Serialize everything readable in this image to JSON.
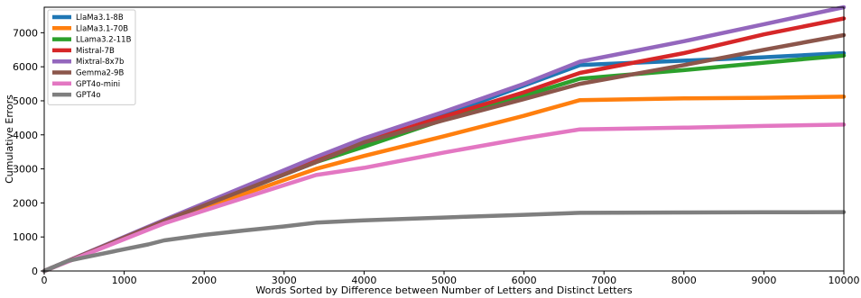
{
  "chart_data": {
    "type": "line",
    "xlabel": "Words Sorted by Difference between Number of Letters and Distinct Letters",
    "ylabel": "Cumulative Errors",
    "xlim": [
      0,
      10000
    ],
    "ylim": [
      0,
      7750
    ],
    "xticks": [
      0,
      1000,
      2000,
      3000,
      4000,
      5000,
      6000,
      7000,
      8000,
      9000,
      10000
    ],
    "yticks": [
      0,
      1000,
      2000,
      3000,
      4000,
      5000,
      6000,
      7000
    ],
    "grid": false,
    "legend_position": "top-left",
    "series": [
      {
        "name": "LlaMa3.1-8B",
        "color": "#1f77b4",
        "x": [
          0,
          1500,
          3400,
          5000,
          6000,
          6700,
          8000,
          9000,
          10000
        ],
        "y": [
          0,
          1450,
          3200,
          4580,
          5450,
          6050,
          6180,
          6280,
          6400
        ]
      },
      {
        "name": "LlaMa3.1-70B",
        "color": "#ff7f0e",
        "x": [
          0,
          1500,
          3400,
          4000,
          5000,
          6000,
          6700,
          8000,
          9000,
          10000
        ],
        "y": [
          0,
          1450,
          3000,
          3380,
          3960,
          4560,
          5020,
          5070,
          5090,
          5120
        ]
      },
      {
        "name": "LLama3.2-11B",
        "color": "#2ca02c",
        "x": [
          0,
          1500,
          3400,
          4000,
          5000,
          6000,
          6700,
          8000,
          9000,
          10000
        ],
        "y": [
          0,
          1480,
          3200,
          3650,
          4450,
          5150,
          5650,
          5900,
          6120,
          6330
        ]
      },
      {
        "name": "Mistral-7B",
        "color": "#d62728",
        "x": [
          0,
          1500,
          3400,
          4000,
          5000,
          6000,
          6700,
          8000,
          9000,
          10000
        ],
        "y": [
          0,
          1480,
          3250,
          3800,
          4540,
          5250,
          5820,
          6400,
          6950,
          7420
        ]
      },
      {
        "name": "Mixtral-8x7b",
        "color": "#9467bd",
        "x": [
          0,
          1500,
          3400,
          4000,
          5000,
          6000,
          6700,
          8000,
          9000,
          10000
        ],
        "y": [
          0,
          1500,
          3350,
          3900,
          4680,
          5500,
          6150,
          6750,
          7250,
          7750
        ]
      },
      {
        "name": "Gemma2-9B",
        "color": "#8c564b",
        "x": [
          0,
          1500,
          3400,
          4000,
          5000,
          6000,
          6700,
          8000,
          9000,
          10000
        ],
        "y": [
          0,
          1470,
          3200,
          3780,
          4430,
          5050,
          5500,
          6050,
          6500,
          6930
        ]
      },
      {
        "name": "GPT4o-mini",
        "color": "#e377c2",
        "x": [
          0,
          1500,
          2500,
          3400,
          4000,
          5000,
          6000,
          6700,
          8000,
          9000,
          10000
        ],
        "y": [
          0,
          1400,
          2150,
          2820,
          3030,
          3480,
          3900,
          4160,
          4210,
          4260,
          4300
        ]
      },
      {
        "name": "GPT4o",
        "color": "#7f7f7f",
        "x": [
          0,
          300,
          500,
          1000,
          1300,
          1500,
          2000,
          2500,
          3000,
          3400,
          4000,
          5000,
          6000,
          6700,
          8000,
          9000,
          10000
        ],
        "y": [
          0,
          300,
          400,
          640,
          780,
          900,
          1060,
          1190,
          1310,
          1420,
          1490,
          1570,
          1650,
          1710,
          1720,
          1725,
          1730
        ]
      }
    ]
  }
}
